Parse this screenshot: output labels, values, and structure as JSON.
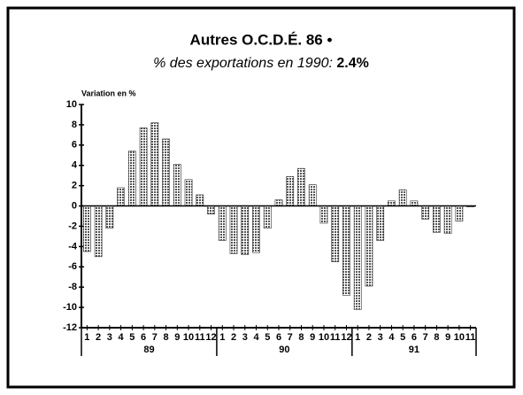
{
  "chart_data": {
    "type": "bar",
    "title": "Autres O.C.D.É. 86 •",
    "subtitle": "% des exportations en 1990:",
    "subtitle_highlight": "2.4%",
    "y_label": "Variation en %",
    "categories": [
      "1",
      "2",
      "3",
      "4",
      "5",
      "6",
      "7",
      "8",
      "9",
      "10",
      "11",
      "12",
      "1",
      "2",
      "3",
      "4",
      "5",
      "6",
      "7",
      "8",
      "9",
      "10",
      "11",
      "12",
      "1",
      "2",
      "3",
      "4",
      "5",
      "6",
      "7",
      "8",
      "9",
      "10",
      "11"
    ],
    "groups": [
      {
        "label": "89",
        "count": 12
      },
      {
        "label": "90",
        "count": 12
      },
      {
        "label": "91",
        "count": 11
      }
    ],
    "values": [
      -4.5,
      -5,
      -2.2,
      1.8,
      5.4,
      7.7,
      8.2,
      6.6,
      4.1,
      2.6,
      1.1,
      -0.8,
      -3.4,
      -4.7,
      -4.8,
      -4.6,
      -2.2,
      0.6,
      2.9,
      3.7,
      2.1,
      -1.7,
      -5.5,
      -8.8,
      -10.2,
      -7.9,
      -3.4,
      0.5,
      1.6,
      0.5,
      -1.3,
      -2.6,
      -2.7,
      -1.5,
      -0.1
    ],
    "color": "#555555",
    "ylim": [
      -12,
      10
    ],
    "yticks": [
      -12,
      -10,
      -8,
      -6,
      -4,
      -2,
      0,
      2,
      4,
      6,
      8,
      10
    ]
  }
}
